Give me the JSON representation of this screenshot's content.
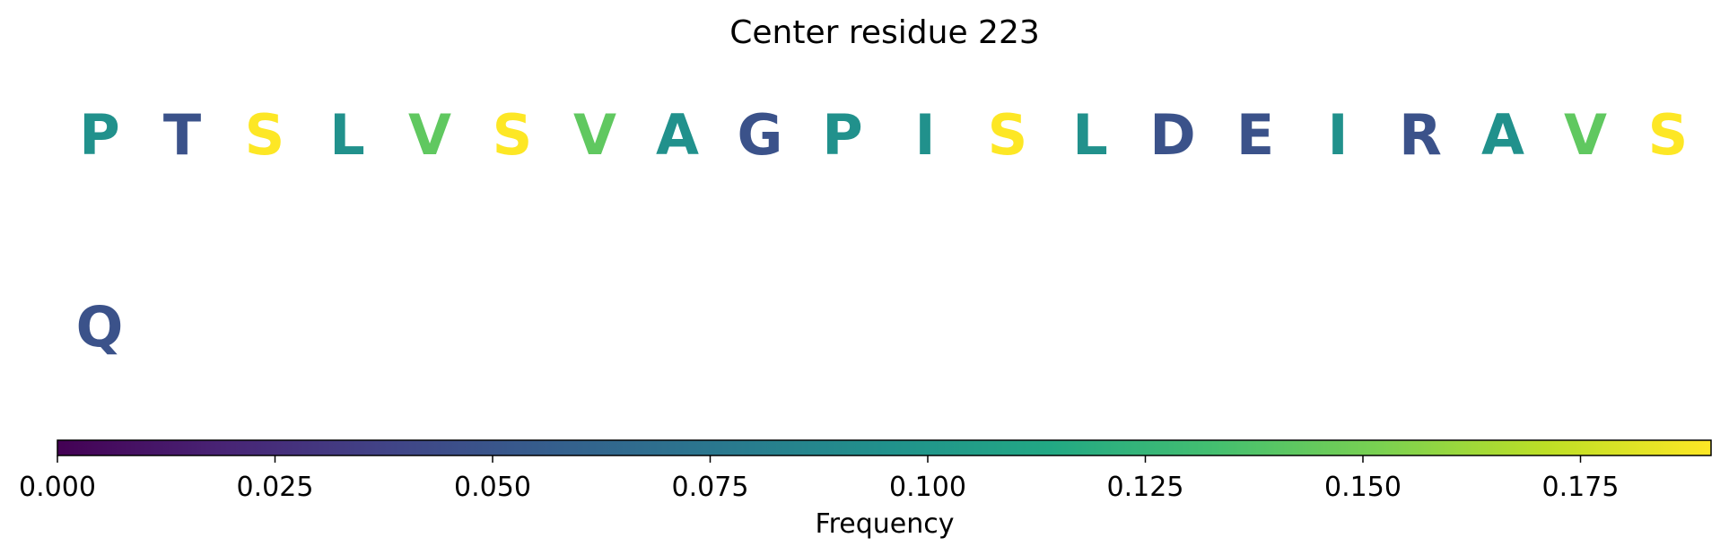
{
  "chart_data": {
    "type": "other",
    "title": "Center residue 223",
    "rows": [
      {
        "residues": [
          {
            "letter": "P",
            "frequency": 0.095
          },
          {
            "letter": "T",
            "frequency": 0.048
          },
          {
            "letter": "S",
            "frequency": 0.19
          },
          {
            "letter": "L",
            "frequency": 0.095
          },
          {
            "letter": "V",
            "frequency": 0.143
          },
          {
            "letter": "S",
            "frequency": 0.19
          },
          {
            "letter": "V",
            "frequency": 0.143
          },
          {
            "letter": "A",
            "frequency": 0.095
          },
          {
            "letter": "G",
            "frequency": 0.048
          },
          {
            "letter": "P",
            "frequency": 0.095
          },
          {
            "letter": "I",
            "frequency": 0.095
          },
          {
            "letter": "S",
            "frequency": 0.19
          },
          {
            "letter": "L",
            "frequency": 0.095
          },
          {
            "letter": "D",
            "frequency": 0.048
          },
          {
            "letter": "E",
            "frequency": 0.048
          },
          {
            "letter": "I",
            "frequency": 0.095
          },
          {
            "letter": "R",
            "frequency": 0.048
          },
          {
            "letter": "A",
            "frequency": 0.095
          },
          {
            "letter": "V",
            "frequency": 0.143
          },
          {
            "letter": "S",
            "frequency": 0.19
          }
        ]
      },
      {
        "residues": [
          {
            "letter": "Q",
            "frequency": 0.048
          }
        ]
      }
    ],
    "colorbar": {
      "label": "Frequency",
      "colormap": "viridis",
      "range": [
        0,
        0.19
      ],
      "ticks": [
        0.0,
        0.025,
        0.05,
        0.075,
        0.1,
        0.125,
        0.15,
        0.175
      ],
      "tick_labels": [
        "0.000",
        "0.025",
        "0.050",
        "0.075",
        "0.100",
        "0.125",
        "0.150",
        "0.175"
      ]
    }
  }
}
